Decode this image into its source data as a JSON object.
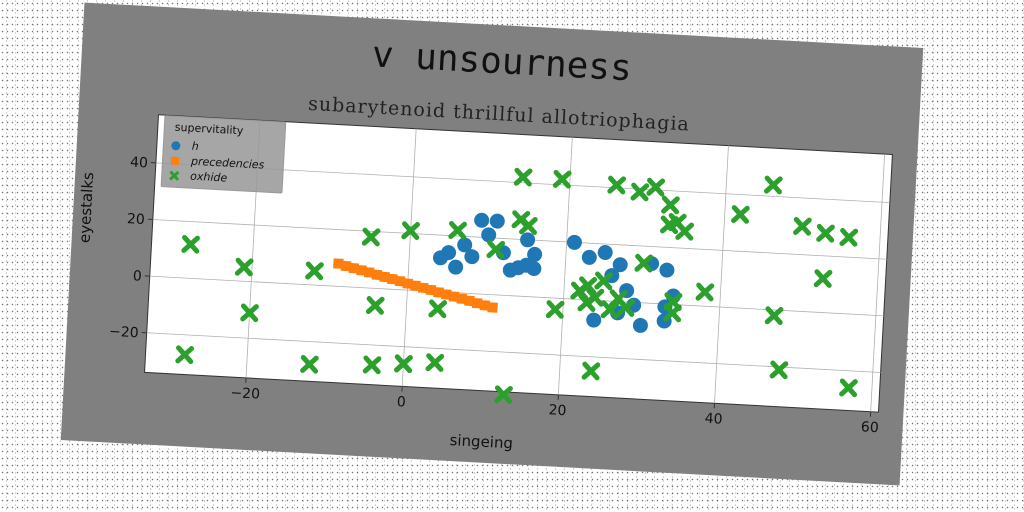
{
  "chart_data": {
    "type": "scatter",
    "title": "v unsourness",
    "subtitle": "subarytenoid thrillful allotriophagia",
    "xlabel": "singeing",
    "ylabel": "eyestalks",
    "xlim": [
      -33,
      61
    ],
    "ylim": [
      -34,
      57
    ],
    "xticks": [
      -20,
      0,
      20,
      40,
      60
    ],
    "yticks": [
      -20,
      0,
      20,
      40
    ],
    "grid": true,
    "legend": {
      "title": "supervitality",
      "placement": "top-left"
    },
    "series": [
      {
        "name": "h",
        "marker": "circle",
        "color": "#1f77b4",
        "x": [
          9,
          11,
          10,
          15,
          12,
          16,
          14,
          8,
          7,
          5,
          4,
          6,
          13,
          15,
          16,
          21,
          23,
          25,
          27,
          26,
          28,
          29,
          31,
          33,
          34,
          33,
          30,
          24,
          27,
          33
        ],
        "y": [
          26,
          26,
          21,
          20,
          15,
          15,
          10,
          13,
          17,
          14,
          12,
          9,
          9,
          11,
          10,
          20,
          15,
          17,
          13,
          9,
          4,
          -1,
          14,
          -1,
          3,
          -6,
          -8,
          -7,
          -4,
          12
        ]
      },
      {
        "name": "precedencies",
        "marker": "square",
        "color": "#ff7f0e",
        "x": [
          -9,
          -8,
          -7,
          -6,
          -5,
          -4,
          -3,
          -2,
          -1,
          0,
          1,
          2,
          3,
          4,
          5,
          6,
          7,
          8,
          9,
          10,
          11
        ],
        "y": [
          8,
          7.3,
          6.7,
          6.1,
          5.5,
          4.8,
          4.2,
          3.6,
          3,
          2.3,
          1.7,
          1.1,
          0.5,
          -0.2,
          -0.8,
          -1.4,
          -2,
          -2.6,
          -3.3,
          -3.9,
          -4.5
        ]
      },
      {
        "name": "oxhide",
        "marker": "x",
        "color": "#2ca02c",
        "x": [
          -28,
          -21,
          -20,
          -12,
          -5,
          -4,
          0,
          0,
          -4,
          -28,
          -12,
          0,
          4,
          4,
          6,
          11,
          14,
          15,
          14,
          19,
          22,
          24,
          25,
          26,
          27,
          29,
          31,
          33,
          33,
          34,
          34,
          35,
          38,
          42,
          46,
          47,
          50,
          53,
          53,
          56,
          48,
          57,
          24,
          28,
          23,
          26,
          30,
          13,
          34,
          19,
          23
        ],
        "y": [
          12,
          5,
          -11,
          5,
          18,
          -6,
          21,
          -26,
          -27,
          -27,
          -28,
          -26,
          -6,
          -25,
          22,
          16,
          27,
          25,
          42,
          42,
          3,
          -25,
          7,
          41,
          1,
          39,
          41,
          35,
          28,
          29,
          1,
          26,
          5,
          33,
          44,
          -2,
          30,
          28,
          12,
          27,
          -21,
          -26,
          1,
          -2,
          5,
          -3,
          14,
          -35,
          -3,
          -4,
          -1
        ]
      }
    ]
  }
}
